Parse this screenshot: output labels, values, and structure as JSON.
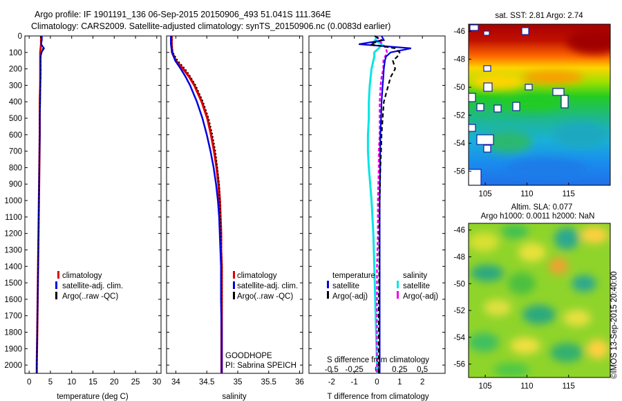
{
  "header": {
    "line1": "Argo profile: IF 1901191_136 06-Sep-2015 20150906_493 51.041S 111.364E",
    "line2": "Climatology: CARS2009. Satellite-adjusted climatology: synTS_20150906.nc (0.0083d earlier)"
  },
  "panels": {
    "temperature": {
      "xlabel": "temperature (deg C)",
      "xticks": [
        "0",
        "5",
        "10",
        "15",
        "20",
        "25",
        "30"
      ],
      "yticks": [
        "0",
        "100",
        "200",
        "300",
        "400",
        "500",
        "600",
        "700",
        "800",
        "900",
        "1000",
        "1100",
        "1200",
        "1300",
        "1400",
        "1500",
        "1600",
        "1700",
        "1800",
        "1900",
        "2000"
      ],
      "legend": [
        "climatology",
        "satellite-adj. clim.",
        "Argo(..raw -QC)"
      ]
    },
    "salinity": {
      "xlabel": "salinity",
      "xticks": [
        "34",
        "34.5",
        "35",
        "35.5",
        "36"
      ],
      "legend": [
        "climatology",
        "satellite-adj. clim.",
        "Argo(..raw -QC)"
      ],
      "note1": "GOODHOPE",
      "note2": "PI: Sabrina SPEICH"
    },
    "difference": {
      "xlabel": "T difference from climatology",
      "top_label": "S difference from climatology",
      "xticks": [
        "-2",
        "-1",
        "0",
        "1",
        "2"
      ],
      "sticks": [
        "-0.5",
        "-0.25",
        "0",
        "0.25",
        "0.5"
      ],
      "legend_t_head": "temperature",
      "legend_s_head": "salinity",
      "legend_t": [
        "satellite",
        "Argo(-adj)"
      ],
      "legend_s": [
        "satellite",
        "Argo(-adj)"
      ]
    },
    "sst_map": {
      "title": "sat. SST: 2.81 Argo: 2.74",
      "yticks": [
        "-46",
        "-48",
        "-50",
        "-52",
        "-54",
        "-56"
      ],
      "xticks": [
        "105",
        "110",
        "115"
      ]
    },
    "sla_map": {
      "title1": "Altim. SLA: 0.077",
      "title2": "Argo h1000: 0.0011 h2000: NaN",
      "yticks": [
        "-46",
        "-48",
        "-50",
        "-52",
        "-54",
        "-56"
      ],
      "xticks": [
        "105",
        "110",
        "115"
      ]
    },
    "credit": "©IMOS 13-Sep-2015 20:40:00"
  },
  "colors": {
    "climatology": "#dd0000",
    "satellite": "#0000dd",
    "argo": "#000000",
    "sal_satellite": "#00e5e5",
    "sal_argo": "#ee00ee"
  },
  "chart_data": [
    {
      "type": "line",
      "name": "temperature",
      "xlabel": "temperature (deg C)",
      "ylabel": "",
      "xlim": [
        -1,
        31
      ],
      "ylim": [
        2050,
        0
      ],
      "depth": [
        0,
        25,
        50,
        75,
        100,
        125,
        150,
        200,
        250,
        300,
        400,
        500,
        600,
        800,
        1000,
        1200,
        1400,
        1600,
        1800,
        2000,
        2050
      ],
      "series": [
        {
          "name": "climatology",
          "values": [
            2.8,
            2.8,
            2.8,
            2.7,
            2.6,
            2.6,
            2.6,
            2.6,
            2.6,
            2.6,
            2.5,
            2.5,
            2.5,
            2.4,
            2.3,
            2.2,
            2.1,
            2.0,
            1.9,
            1.8,
            1.8
          ]
        },
        {
          "name": "satellite-adj. clim.",
          "values": [
            3.0,
            3.0,
            2.8,
            3.5,
            2.9,
            2.7,
            2.7,
            2.7,
            2.7,
            2.6,
            2.6,
            2.5,
            2.5,
            2.4,
            2.3,
            2.2,
            2.1,
            2.0,
            1.9,
            1.8,
            1.8
          ]
        },
        {
          "name": "Argo(..raw -QC)",
          "values": [
            2.7,
            2.8,
            2.9,
            3.2,
            3.0,
            2.8,
            2.7,
            2.8,
            2.7,
            2.6,
            2.6,
            2.5,
            2.5,
            2.4,
            2.3,
            2.2,
            2.1,
            2.0,
            1.9,
            1.8,
            1.8
          ]
        }
      ]
    },
    {
      "type": "line",
      "name": "salinity",
      "xlabel": "salinity",
      "ylabel": "",
      "xlim": [
        33.85,
        36.05
      ],
      "ylim": [
        2050,
        0
      ],
      "depth": [
        0,
        50,
        100,
        150,
        200,
        250,
        300,
        400,
        500,
        600,
        700,
        800,
        900,
        1000,
        1100,
        1200,
        1300,
        1400,
        1600,
        1800,
        2000,
        2050
      ],
      "series": [
        {
          "name": "climatology",
          "values": [
            33.93,
            33.93,
            33.94,
            34.0,
            34.12,
            34.22,
            34.3,
            34.42,
            34.51,
            34.57,
            34.62,
            34.66,
            34.69,
            34.71,
            34.72,
            34.73,
            34.73,
            34.74,
            34.74,
            34.74,
            34.74,
            34.74
          ]
        },
        {
          "name": "satellite-adj. clim.",
          "values": [
            33.92,
            33.92,
            33.94,
            33.99,
            34.08,
            34.16,
            34.23,
            34.34,
            34.43,
            34.5,
            34.56,
            34.61,
            34.65,
            34.68,
            34.7,
            34.71,
            34.72,
            34.73,
            34.73,
            34.74,
            34.74,
            34.74
          ]
        },
        {
          "name": "Argo(..raw -QC)",
          "values": [
            33.93,
            33.93,
            33.95,
            34.03,
            34.15,
            34.24,
            34.32,
            34.44,
            34.53,
            34.59,
            34.64,
            34.67,
            34.7,
            34.71,
            34.72,
            34.73,
            34.73,
            34.74,
            34.74,
            34.74,
            34.74,
            34.74
          ]
        }
      ]
    },
    {
      "type": "line",
      "name": "difference",
      "xlabel": "T difference from climatology",
      "top_label": "S difference from climatology",
      "xlim": [
        -3,
        3
      ],
      "s_xlim": [
        -0.75,
        0.75
      ],
      "ylim": [
        2050,
        0
      ],
      "depth": [
        0,
        25,
        50,
        75,
        100,
        125,
        150,
        200,
        250,
        300,
        400,
        500,
        600,
        700,
        800,
        1000,
        1200,
        1400,
        1600,
        1800,
        2000,
        2050
      ],
      "series": [
        {
          "name": "temperature satellite",
          "values": [
            0.2,
            0.3,
            -0.8,
            1.5,
            0.6,
            0.4,
            0.35,
            0.3,
            0.28,
            0.25,
            0.2,
            0.18,
            0.15,
            0.14,
            0.14,
            0.12,
            0.12,
            0.12,
            0.12,
            0.12,
            0.12,
            0.12
          ]
        },
        {
          "name": "temperature Argo(-adj)",
          "values": [
            -0.1,
            0.2,
            -0.3,
            0.8,
            1.0,
            0.9,
            0.7,
            0.8,
            0.6,
            0.5,
            0.3,
            0.25,
            0.2,
            0.18,
            0.15,
            0.12,
            0.1,
            0.1,
            0.08,
            0.08,
            0.08,
            0.08
          ]
        },
        {
          "name": "salinity satellite",
          "values": [
            0.0,
            -0.02,
            0.05,
            0.02,
            -0.03,
            -0.03,
            -0.04,
            -0.06,
            -0.07,
            -0.08,
            -0.09,
            -0.09,
            -0.1,
            -0.1,
            -0.09,
            -0.06,
            -0.04,
            -0.03,
            -0.02,
            -0.01,
            0.0,
            0.0
          ]
        },
        {
          "name": "salinity Argo(-adj)",
          "values": [
            0.0,
            0.02,
            0.06,
            0.1,
            0.11,
            0.09,
            0.07,
            0.07,
            0.05,
            0.04,
            0.03,
            0.03,
            0.03,
            0.02,
            0.02,
            0.01,
            0.01,
            0.0,
            0.0,
            0.0,
            0.0,
            0.0
          ]
        }
      ]
    }
  ]
}
